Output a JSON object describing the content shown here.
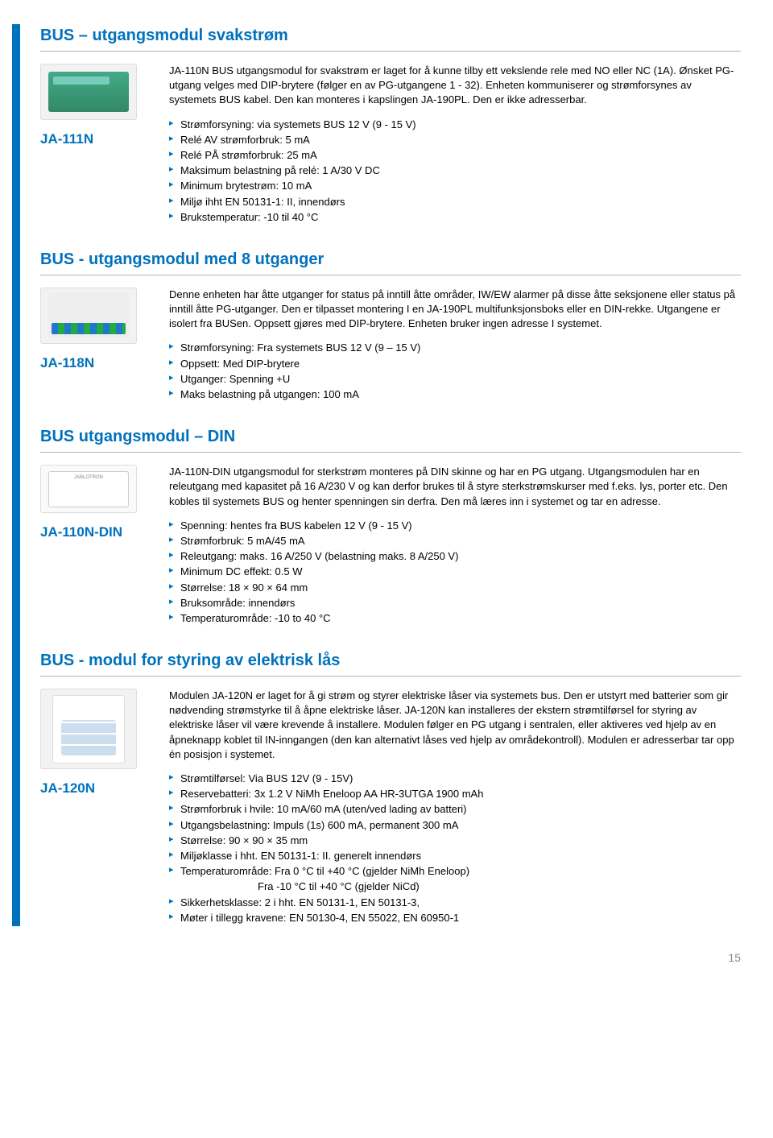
{
  "page_number": "15",
  "sections": [
    {
      "heading": "BUS – utgangsmodul svakstrøm",
      "code": "JA-111N",
      "desc": "JA-110N BUS utgangsmodul for svakstrøm er laget for å kunne tilby ett vekslende rele med NO eller NC (1A). Ønsket PG-utgang velges med DIP-brytere (følger en av PG-utgangene 1 - 32). Enheten kommuniserer og strømforsynes av systemets BUS kabel. Den kan monteres i kapslingen JA-190PL. Den er ikke adresserbar.",
      "specs": [
        "Strømforsyning: via systemets BUS 12 V (9 - 15 V)",
        "Relé AV strømforbruk: 5 mA",
        "Relé PÅ strømforbruk: 25 mA",
        "Maksimum belastning på relé: 1 A/30 V DC",
        "Minimum brytestrøm: 10 mA",
        "Miljø ihht EN 50131-1: II, innendørs",
        "Brukstemperatur: -10 til 40 °C"
      ]
    },
    {
      "heading": "BUS - utgangsmodul med 8 utganger",
      "code": "JA-118N",
      "desc": "Denne enheten har åtte utganger for status på inntill åtte områder, IW/EW alarmer på disse åtte seksjonene eller status på inntill åtte PG-utganger. Den er tilpasset montering I en JA-190PL multifunksjonsboks eller en DIN-rekke. Utgangene er isolert fra BUSen. Oppsett gjøres med DIP-brytere. Enheten bruker ingen adresse I systemet.",
      "specs": [
        "Strømforsyning: Fra systemets BUS 12 V (9 – 15 V)",
        "Oppsett: Med DIP-brytere",
        "Utganger: Spenning +U",
        "Maks belastning på utgangen: 100 mA"
      ]
    },
    {
      "heading": "BUS utgangsmodul – DIN",
      "code": "JA-110N-DIN",
      "desc": "JA-110N-DIN utgangsmodul for sterkstrøm monteres på DIN skinne og har en PG utgang. Utgangsmodulen har en releutgang med kapasitet på 16 A/230 V og kan derfor brukes til å styre sterkstrømskurser med f.eks. lys, porter etc. Den kobles til systemets BUS og henter spenningen sin derfra. Den må læres inn i systemet og tar en adresse.",
      "specs": [
        "Spenning: hentes fra BUS kabelen 12 V (9 - 15 V)",
        "Strømforbruk: 5 mA/45 mA",
        "Releutgang: maks. 16 A/250 V (belastning maks. 8 A/250 V)",
        "Minimum DC effekt: 0.5 W",
        "Størrelse: 18 × 90 × 64 mm",
        "Bruksområde: innendørs",
        "Temperaturområde: -10 to 40 °C"
      ]
    },
    {
      "heading": "BUS - modul for styring av elektrisk lås",
      "code": "JA-120N",
      "desc": "Modulen JA-120N er laget for å gi strøm og styrer elektriske låser via systemets bus. Den er utstyrt med batterier som gir nødvending strømstyrke til å åpne elektriske låser. JA-120N kan installeres der ekstern strømtilførsel for styring av elektriske låser vil være krevende å installere. Modulen følger en PG utgang i sentralen, eller aktiveres ved hjelp av en åpneknapp koblet til IN-inngangen (den kan alternativt låses ved hjelp av områdekontroll). Modulen er adresserbar tar opp én posisjon i systemet.",
      "specs": [
        "Strømtilførsel: Via BUS 12V (9 - 15V)",
        "Reservebatteri: 3x 1.2 V NiMh Eneloop AA HR-3UTGA 1900 mAh",
        "Strømforbruk i hvile: 10 mA/60 mA (uten/ved lading av batteri)",
        "Utgangsbelastning: Impuls (1s) 600 mA, permanent 300 mA",
        "Størrelse: 90 × 90 × 35 mm",
        "Miljøklasse i hht.  EN 50131-1: II. generelt innendørs",
        "Temperaturområde: Fra 0 °C til +40 °C (gjelder NiMh Eneloop)",
        "Sikkerhetsklasse: 2 i hht. EN 50131-1, EN 50131-3,",
        "Møter i tillegg kravene: EN 50130-4, EN 55022, EN 60950-1"
      ],
      "spec_extra_7": "Fra -10 °C til +40 °C (gjelder NiCd)"
    }
  ]
}
